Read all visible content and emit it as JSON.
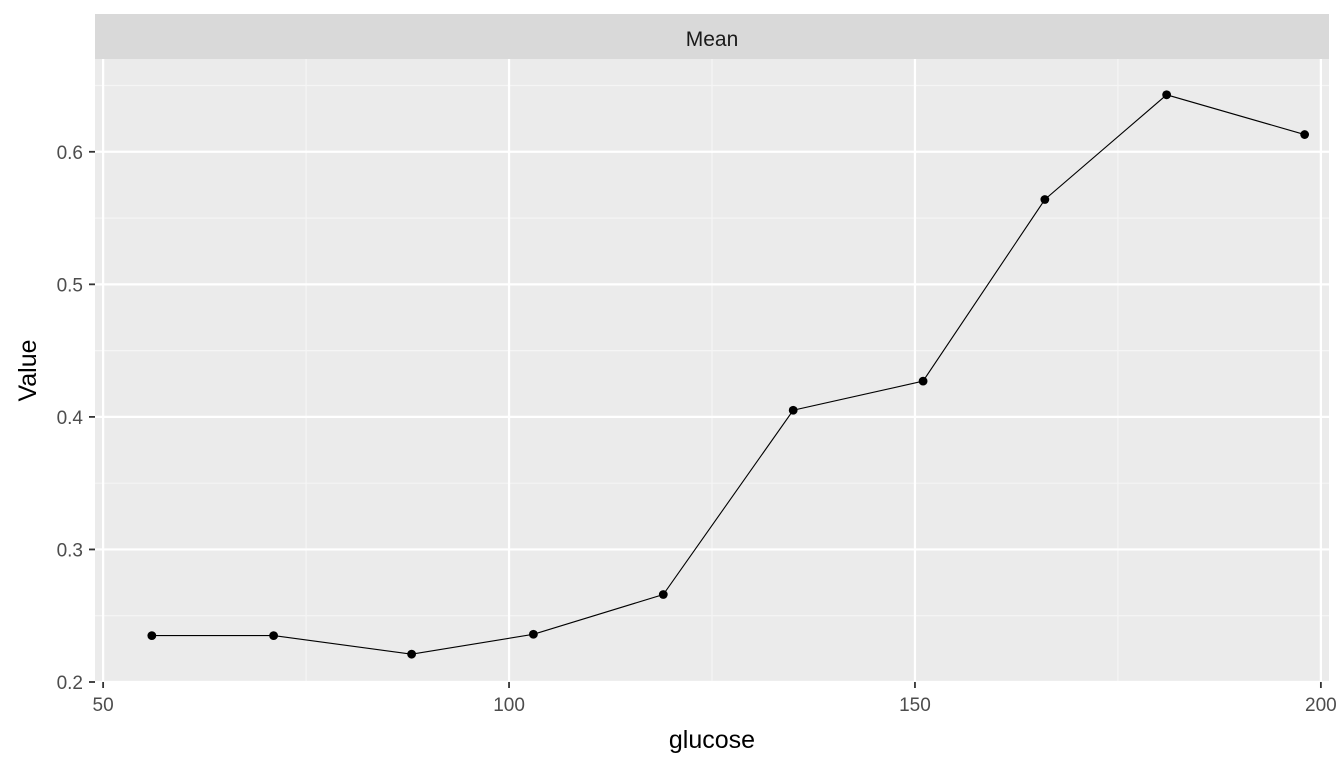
{
  "chart_data": {
    "type": "line",
    "facet_label": "Mean",
    "title": "",
    "xlabel": "glucose",
    "ylabel": "Value",
    "xlim": [
      49,
      201
    ],
    "ylim": [
      0.2,
      0.67
    ],
    "x_ticks": [
      50,
      100,
      150,
      200
    ],
    "y_ticks": [
      0.2,
      0.3,
      0.4,
      0.5,
      0.6
    ],
    "x_tick_labels": [
      "50",
      "100",
      "150",
      "200"
    ],
    "y_tick_labels": [
      "0.2",
      "0.3",
      "0.4",
      "0.5",
      "0.6"
    ],
    "grid": true,
    "legend": "none",
    "series": [
      {
        "x": [
          56,
          71,
          88,
          103,
          119,
          135,
          151,
          166,
          181,
          198
        ],
        "y": [
          0.235,
          0.235,
          0.221,
          0.236,
          0.266,
          0.405,
          0.427,
          0.564,
          0.643,
          0.613
        ]
      }
    ]
  },
  "colors": {
    "panel_background": "#EBEBEB",
    "strip_background": "#D9D9D9",
    "grid_major": "#FFFFFF",
    "grid_minor": "#F5F5F5",
    "line": "#000000",
    "point": "#000000"
  }
}
